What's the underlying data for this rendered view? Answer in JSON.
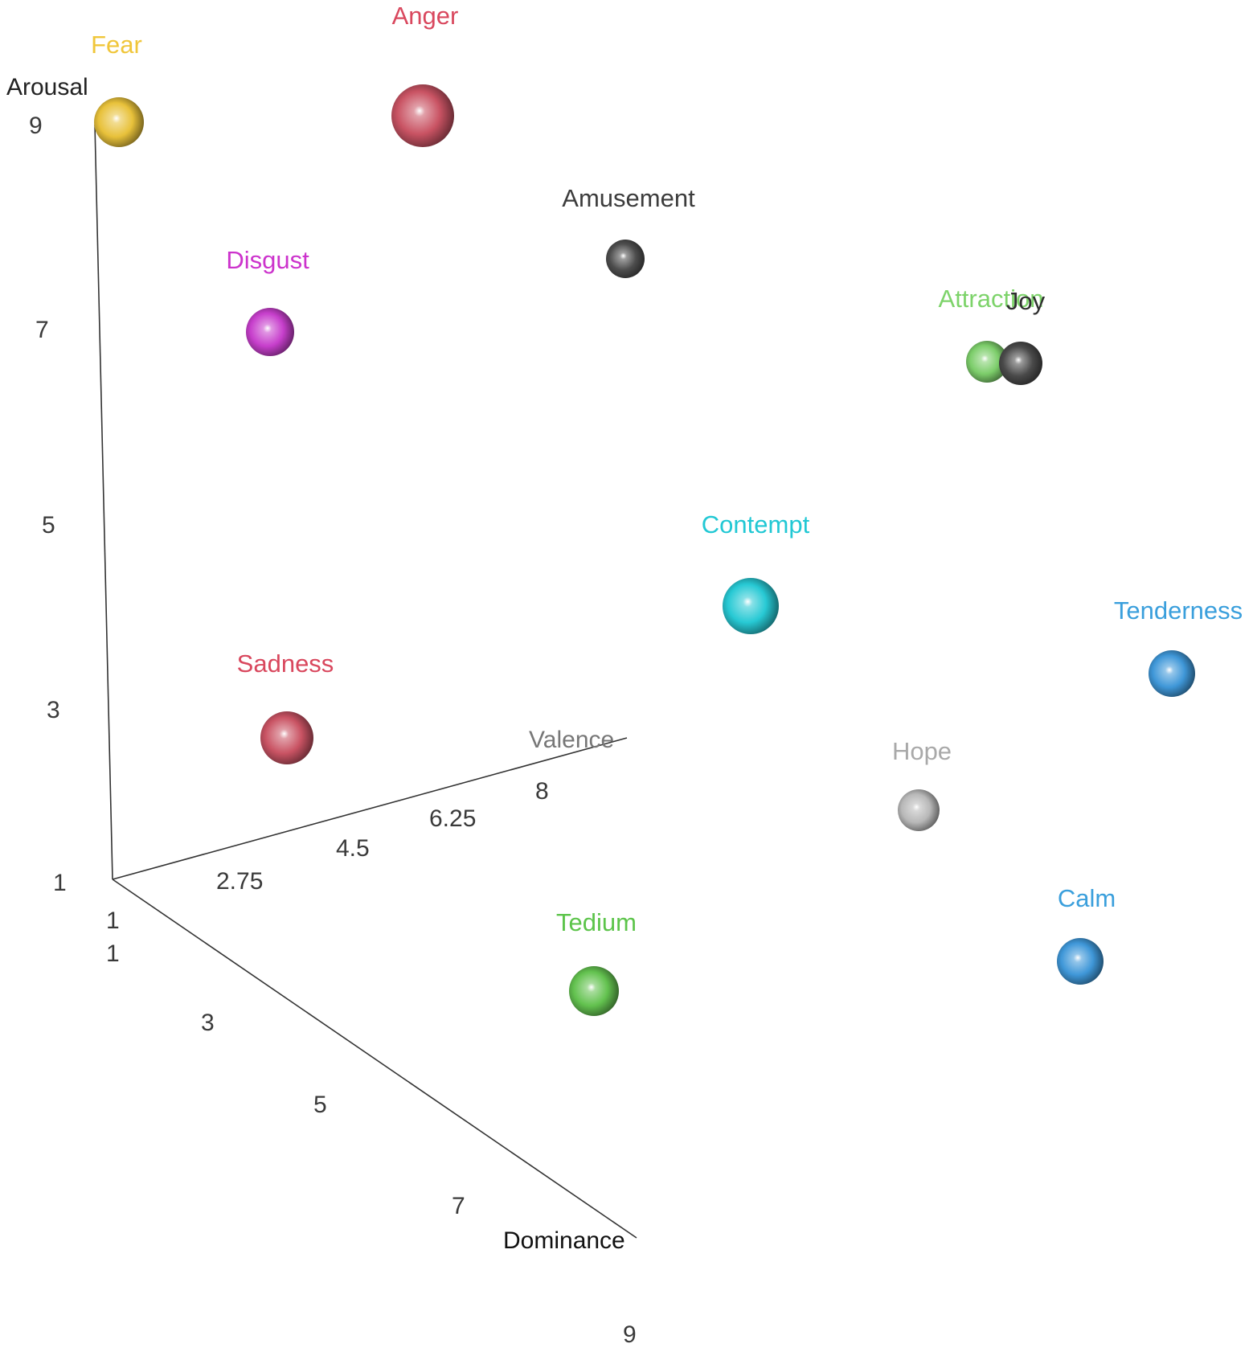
{
  "chart_data": {
    "type": "scatter3d",
    "axes": {
      "arousal": {
        "label": "Arousal",
        "label_color": "#222222",
        "ticks": [
          "9",
          "7",
          "5",
          "3",
          "1"
        ]
      },
      "valence": {
        "label": "Valence",
        "label_color": "#777777",
        "ticks": [
          "2.75",
          "4.5",
          "6.25",
          "8"
        ]
      },
      "dominance": {
        "label": "Dominance",
        "label_color": "#111111",
        "ticks": [
          "1",
          "1",
          "3",
          "5",
          "7",
          "9"
        ]
      }
    },
    "points": [
      {
        "label": "Fear",
        "color": "#e8c13a",
        "label_color": "#f0c63a"
      },
      {
        "label": "Anger",
        "color": "#c95363",
        "label_color": "#d9485e"
      },
      {
        "label": "Amusement",
        "color": "#4d4d4d",
        "label_color": "#3c3c3c"
      },
      {
        "label": "Disgust",
        "color": "#c73fcc",
        "label_color": "#cc33cc"
      },
      {
        "label": "Attraction",
        "color": "#7ccd6a",
        "label_color": "#7dd36a"
      },
      {
        "label": "Joy",
        "color": "#4a4a4a",
        "label_color": "#2f2f2f"
      },
      {
        "label": "Contempt",
        "color": "#27c9d4",
        "label_color": "#22c8d4"
      },
      {
        "label": "Tenderness",
        "color": "#3f97d8",
        "label_color": "#3a9fdc"
      },
      {
        "label": "Sadness",
        "color": "#c95363",
        "label_color": "#d9485e"
      },
      {
        "label": "Hope",
        "color": "#b8b8b8",
        "label_color": "#a9a9a9"
      },
      {
        "label": "Calm",
        "color": "#3f97d8",
        "label_color": "#3a9fdc"
      },
      {
        "label": "Tedium",
        "color": "#63c24f",
        "label_color": "#5cc44a"
      }
    ]
  }
}
